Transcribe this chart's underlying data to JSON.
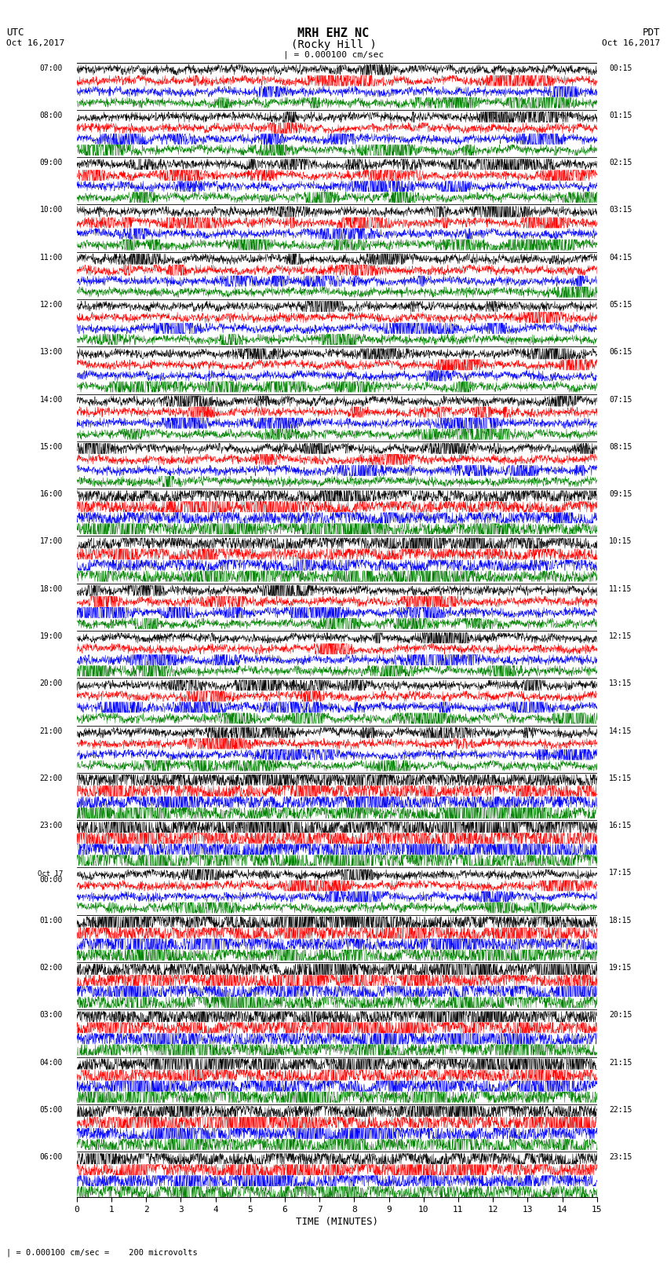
{
  "title_line1": "MRH EHZ NC",
  "title_line2": "(Rocky Hill )",
  "scale_label": "| = 0.000100 cm/sec",
  "left_label_top": "UTC",
  "left_label_date": "Oct 16,2017",
  "right_label_top": "PDT",
  "right_label_date": "Oct 16,2017",
  "xlabel": "TIME (MINUTES)",
  "bottom_note": "| = 0.000100 cm/sec =    200 microvolts",
  "fig_width": 8.5,
  "fig_height": 16.13,
  "dpi": 100,
  "bg_color": "#ffffff",
  "trace_colors": [
    "black",
    "red",
    "blue",
    "green"
  ],
  "left_times_utc": [
    "07:00",
    "08:00",
    "09:00",
    "10:00",
    "11:00",
    "12:00",
    "13:00",
    "14:00",
    "15:00",
    "16:00",
    "17:00",
    "18:00",
    "19:00",
    "20:00",
    "21:00",
    "22:00",
    "23:00",
    "Oct 17\n00:00",
    "01:00",
    "02:00",
    "03:00",
    "04:00",
    "05:00",
    "06:00"
  ],
  "right_times_pdt": [
    "00:15",
    "01:15",
    "02:15",
    "03:15",
    "04:15",
    "05:15",
    "06:15",
    "07:15",
    "08:15",
    "09:15",
    "10:15",
    "11:15",
    "12:15",
    "13:15",
    "14:15",
    "15:15",
    "16:15",
    "17:15",
    "18:15",
    "19:15",
    "20:15",
    "21:15",
    "22:15",
    "23:15"
  ],
  "n_rows": 24,
  "n_traces_per_row": 4,
  "minutes_per_row": 15,
  "noise_seed": 42,
  "high_amp_rows": [
    15,
    18,
    19,
    20,
    21,
    22,
    23
  ],
  "very_high_amp_rows": [
    9,
    10
  ],
  "event_rows": [
    16
  ],
  "base_amp": 0.3,
  "high_amp_mult": 2.2,
  "very_high_amp_mult": 1.8,
  "event_amp_mult": 3.5
}
